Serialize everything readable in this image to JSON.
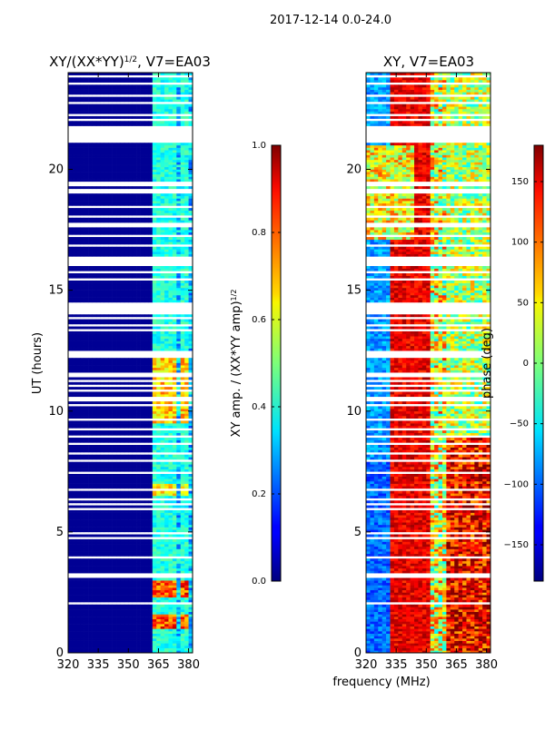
{
  "figure_title": "2017-12-14 0.0-24.0",
  "shared_xlabel": "frequency (MHz)",
  "chart_data": [
    {
      "type": "heatmap",
      "title": "XY/(XX*YY)",
      "title_exponent": "1/2",
      "title_suffix": ", V7=EA03",
      "xlabel": "",
      "ylabel": "UT (hours)",
      "xlim": [
        320,
        382
      ],
      "ylim": [
        0,
        24
      ],
      "xticks": [
        320,
        335,
        350,
        365,
        380
      ],
      "yticks": [
        0,
        5,
        10,
        15,
        20
      ],
      "colorbar": {
        "label": "XY amp. / (XX*YY amp)",
        "label_exponent": "1/2",
        "range": [
          0.0,
          1.0
        ],
        "ticks": [
          "0.0",
          "0.2",
          "0.4",
          "0.6",
          "0.8",
          "1.0"
        ],
        "tick_values": [
          0.0,
          0.2,
          0.4,
          0.6,
          0.8,
          1.0
        ]
      }
    },
    {
      "type": "heatmap",
      "title": "XY, V7=EA03",
      "xlabel": "",
      "ylabel": "",
      "xlim": [
        320,
        382
      ],
      "ylim": [
        0,
        24
      ],
      "xticks": [
        320,
        335,
        350,
        365,
        380
      ],
      "yticks": [
        0,
        5,
        10,
        15,
        20
      ],
      "colorbar": {
        "label": "phase (deg)",
        "range": [
          -180,
          180
        ],
        "ticks": [
          "−150",
          "−100",
          "−50",
          "0",
          "50",
          "100",
          "150"
        ],
        "tick_values": [
          -150,
          -100,
          -50,
          0,
          50,
          100,
          150
        ]
      }
    }
  ]
}
